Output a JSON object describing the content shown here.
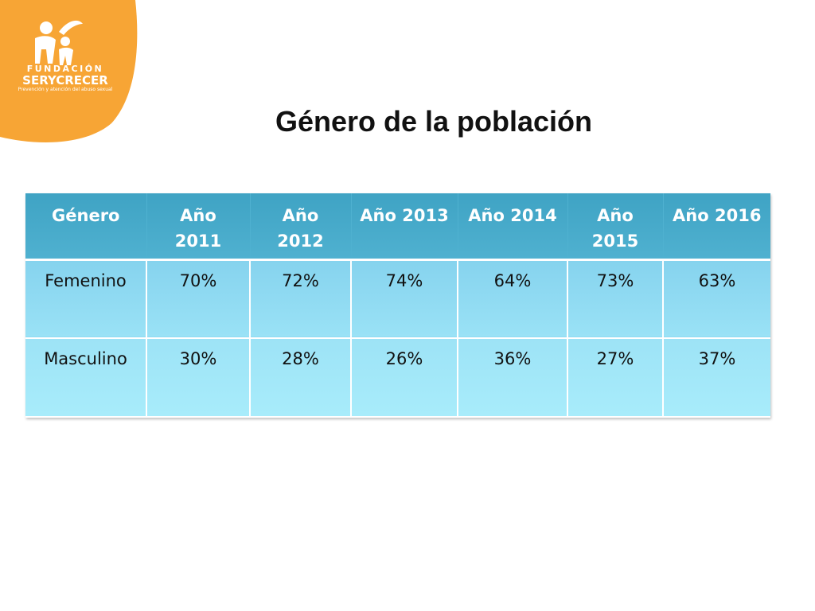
{
  "logo": {
    "line1": "FUNDACIÓN",
    "line2": "SERYCRECER",
    "line3": "Prevención y atención del abuso sexual",
    "color": "#f7a535"
  },
  "title": "Género de la población",
  "table": {
    "headers": [
      "Género",
      "Año 2011",
      "Año 2012",
      "Año 2013",
      "Año 2014",
      "Año 2015",
      "Año 2016"
    ],
    "rows": [
      {
        "label": "Femenino",
        "values": [
          "70%",
          "72%",
          "74%",
          "64%",
          "73%",
          "63%"
        ]
      },
      {
        "label": "Masculino",
        "values": [
          "30%",
          "28%",
          "26%",
          "36%",
          "27%",
          "37%"
        ]
      }
    ]
  }
}
